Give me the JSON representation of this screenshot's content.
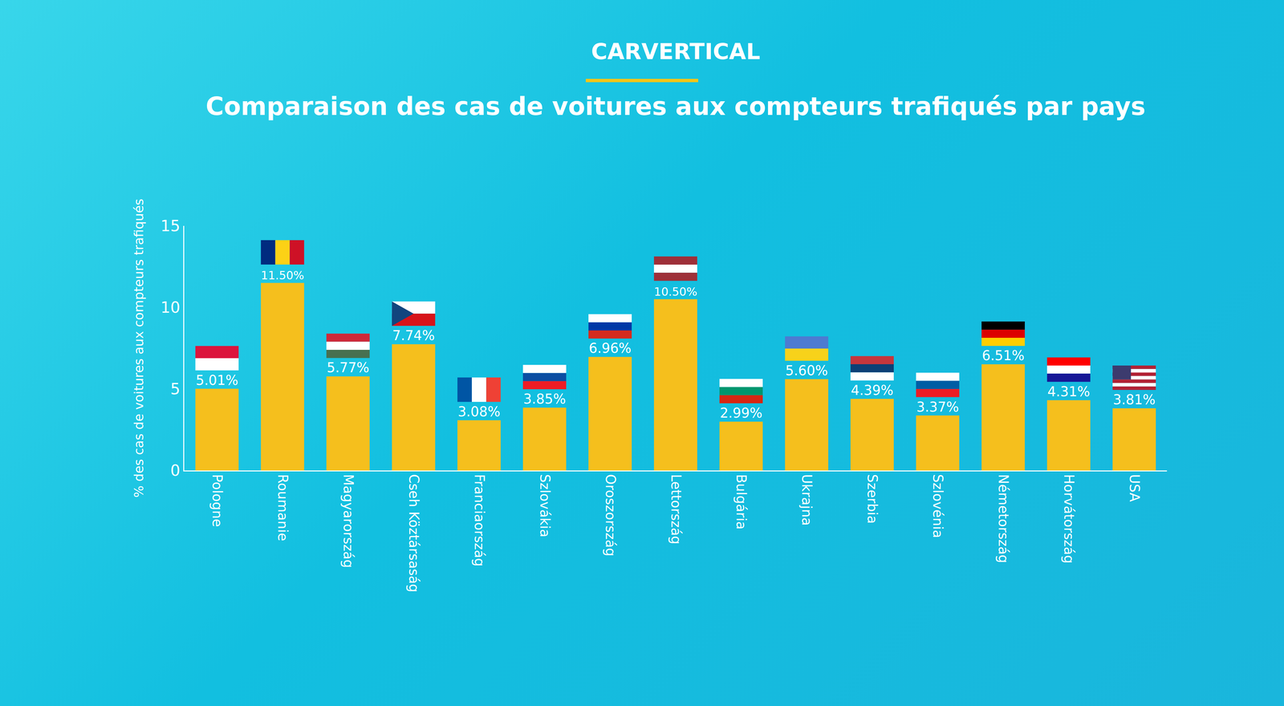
{
  "logo": "CARVERTICAL",
  "chart_data": {
    "type": "bar",
    "title": "Comparaison des cas de voitures aux compteurs trafiqués par pays",
    "y_label": "% des cas de voitures aux compteurs trafiqués",
    "categories": [
      "Pologne",
      "Roumanie",
      "Magyarország",
      "Cseh Köztársaság",
      "Franciaország",
      "Szlovákia",
      "Oroszország",
      "Lettország",
      "Bulgária",
      "Ukrajna",
      "Szerbia",
      "Szlovénia",
      "Németország",
      "Horvátország",
      "USA"
    ],
    "values": [
      5.01,
      11.5,
      5.77,
      7.74,
      3.08,
      3.85,
      6.96,
      10.5,
      2.99,
      5.6,
      4.39,
      3.37,
      6.51,
      4.31,
      3.81
    ],
    "value_labels": [
      "5.01%",
      "11.50%",
      "5.77%",
      "7.74%",
      "3.08%",
      "3.85%",
      "6.96%",
      "10.50%",
      "2.99%",
      "5.60%",
      "4.39%",
      "3.37%",
      "6.51%",
      "4.31%",
      "3.81%"
    ],
    "color": "#f5bf1d",
    "ylim": [
      0,
      15
    ],
    "yticks": [
      0,
      5,
      10,
      15
    ],
    "grid": false,
    "data_labels": true
  }
}
